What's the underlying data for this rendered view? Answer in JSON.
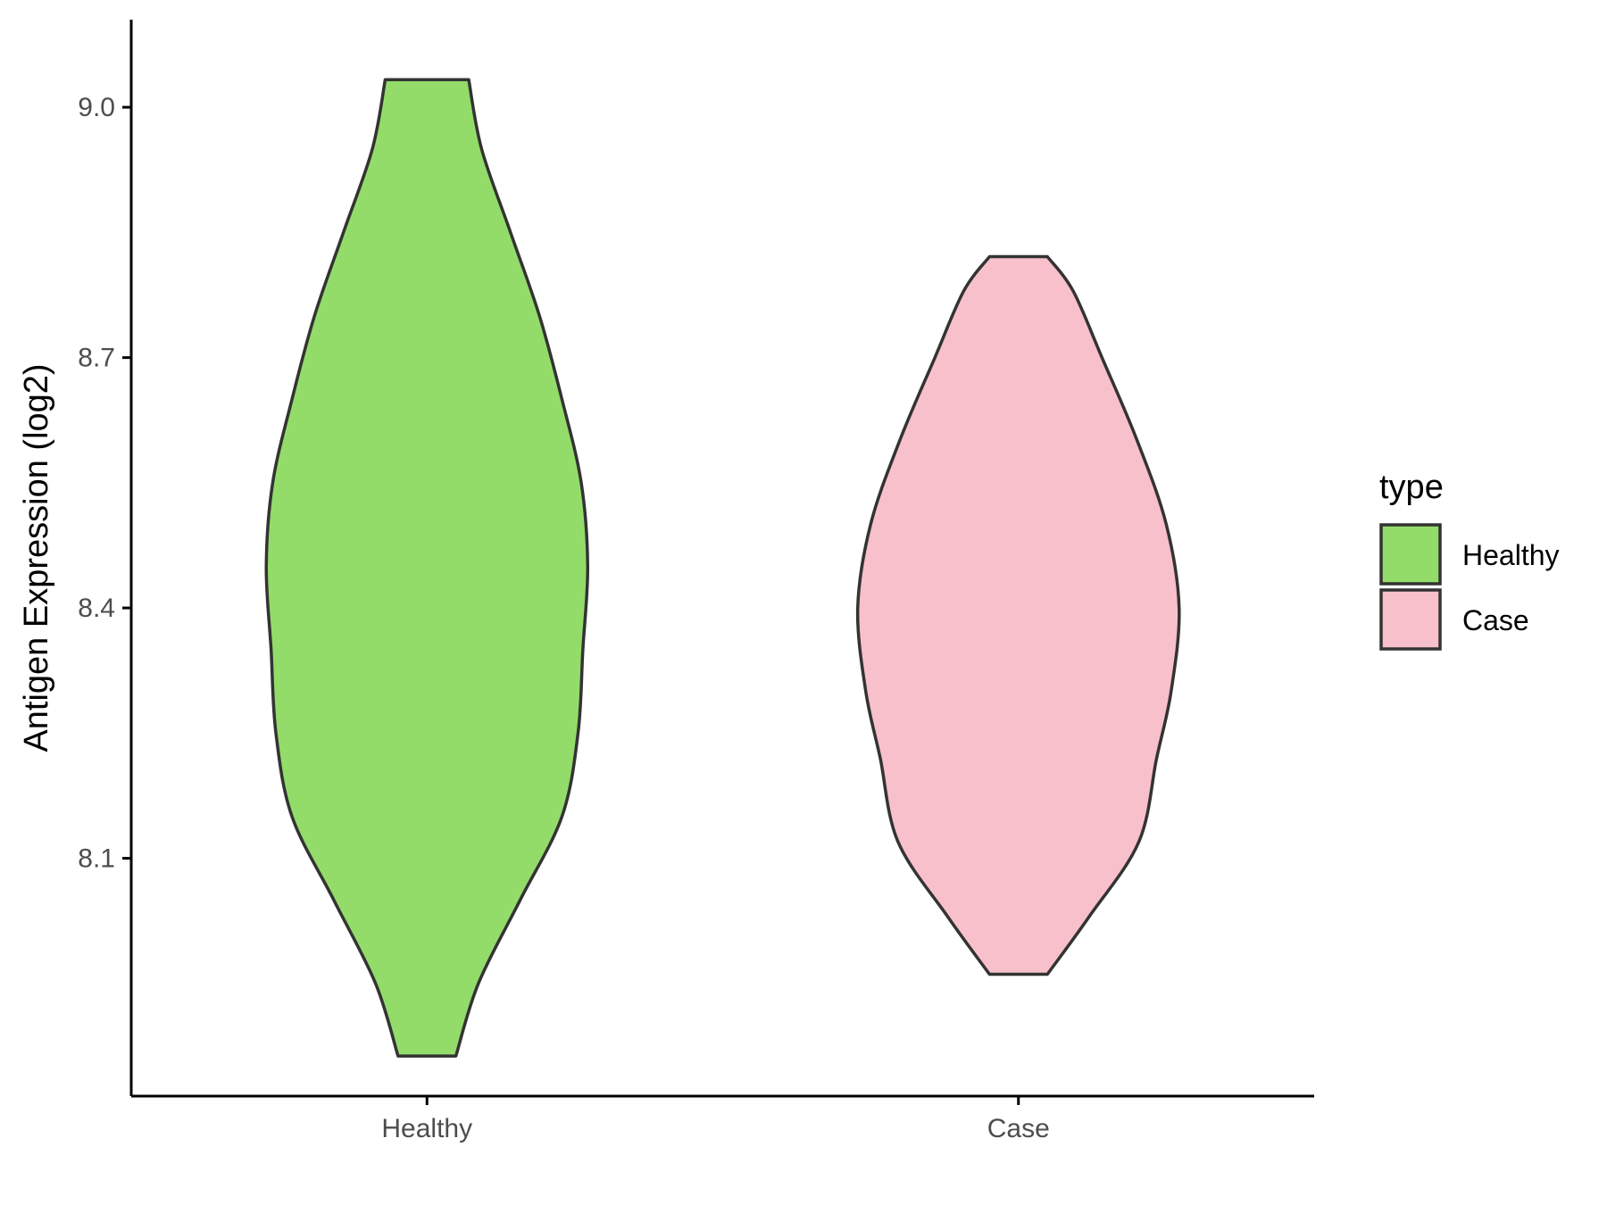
{
  "chart_data": {
    "type": "violin",
    "xlabel": "",
    "ylabel": "Antigen Expression (log2)",
    "ylim": [
      7.815,
      9.105
    ],
    "yticks": [
      8.1,
      8.4,
      8.7,
      9.0
    ],
    "ytick_labels": [
      "8.1",
      "8.4",
      "8.7",
      "9.0"
    ],
    "grid": false,
    "legend": {
      "title": "type",
      "position": "right",
      "entries": [
        {
          "label": "Healthy",
          "color": "#93DC6A"
        },
        {
          "label": "Case",
          "color": "#F8C0CB"
        }
      ]
    },
    "categories": [
      "Healthy",
      "Case"
    ],
    "series": [
      {
        "name": "Healthy",
        "color": "#93DC6A",
        "min": 7.863,
        "max": 9.033,
        "density": [
          [
            7.863,
            0.18
          ],
          [
            7.95,
            0.32
          ],
          [
            8.05,
            0.58
          ],
          [
            8.15,
            0.84
          ],
          [
            8.25,
            0.94
          ],
          [
            8.35,
            0.97
          ],
          [
            8.45,
            1.0
          ],
          [
            8.55,
            0.96
          ],
          [
            8.65,
            0.84
          ],
          [
            8.75,
            0.7
          ],
          [
            8.85,
            0.52
          ],
          [
            8.95,
            0.34
          ],
          [
            9.033,
            0.26
          ]
        ]
      },
      {
        "name": "Case",
        "color": "#F8C0CB",
        "min": 7.961,
        "max": 8.821,
        "density": [
          [
            7.961,
            0.18
          ],
          [
            8.03,
            0.44
          ],
          [
            8.12,
            0.75
          ],
          [
            8.22,
            0.86
          ],
          [
            8.3,
            0.95
          ],
          [
            8.4,
            1.0
          ],
          [
            8.5,
            0.92
          ],
          [
            8.6,
            0.74
          ],
          [
            8.7,
            0.52
          ],
          [
            8.78,
            0.34
          ],
          [
            8.821,
            0.18
          ]
        ]
      }
    ]
  }
}
